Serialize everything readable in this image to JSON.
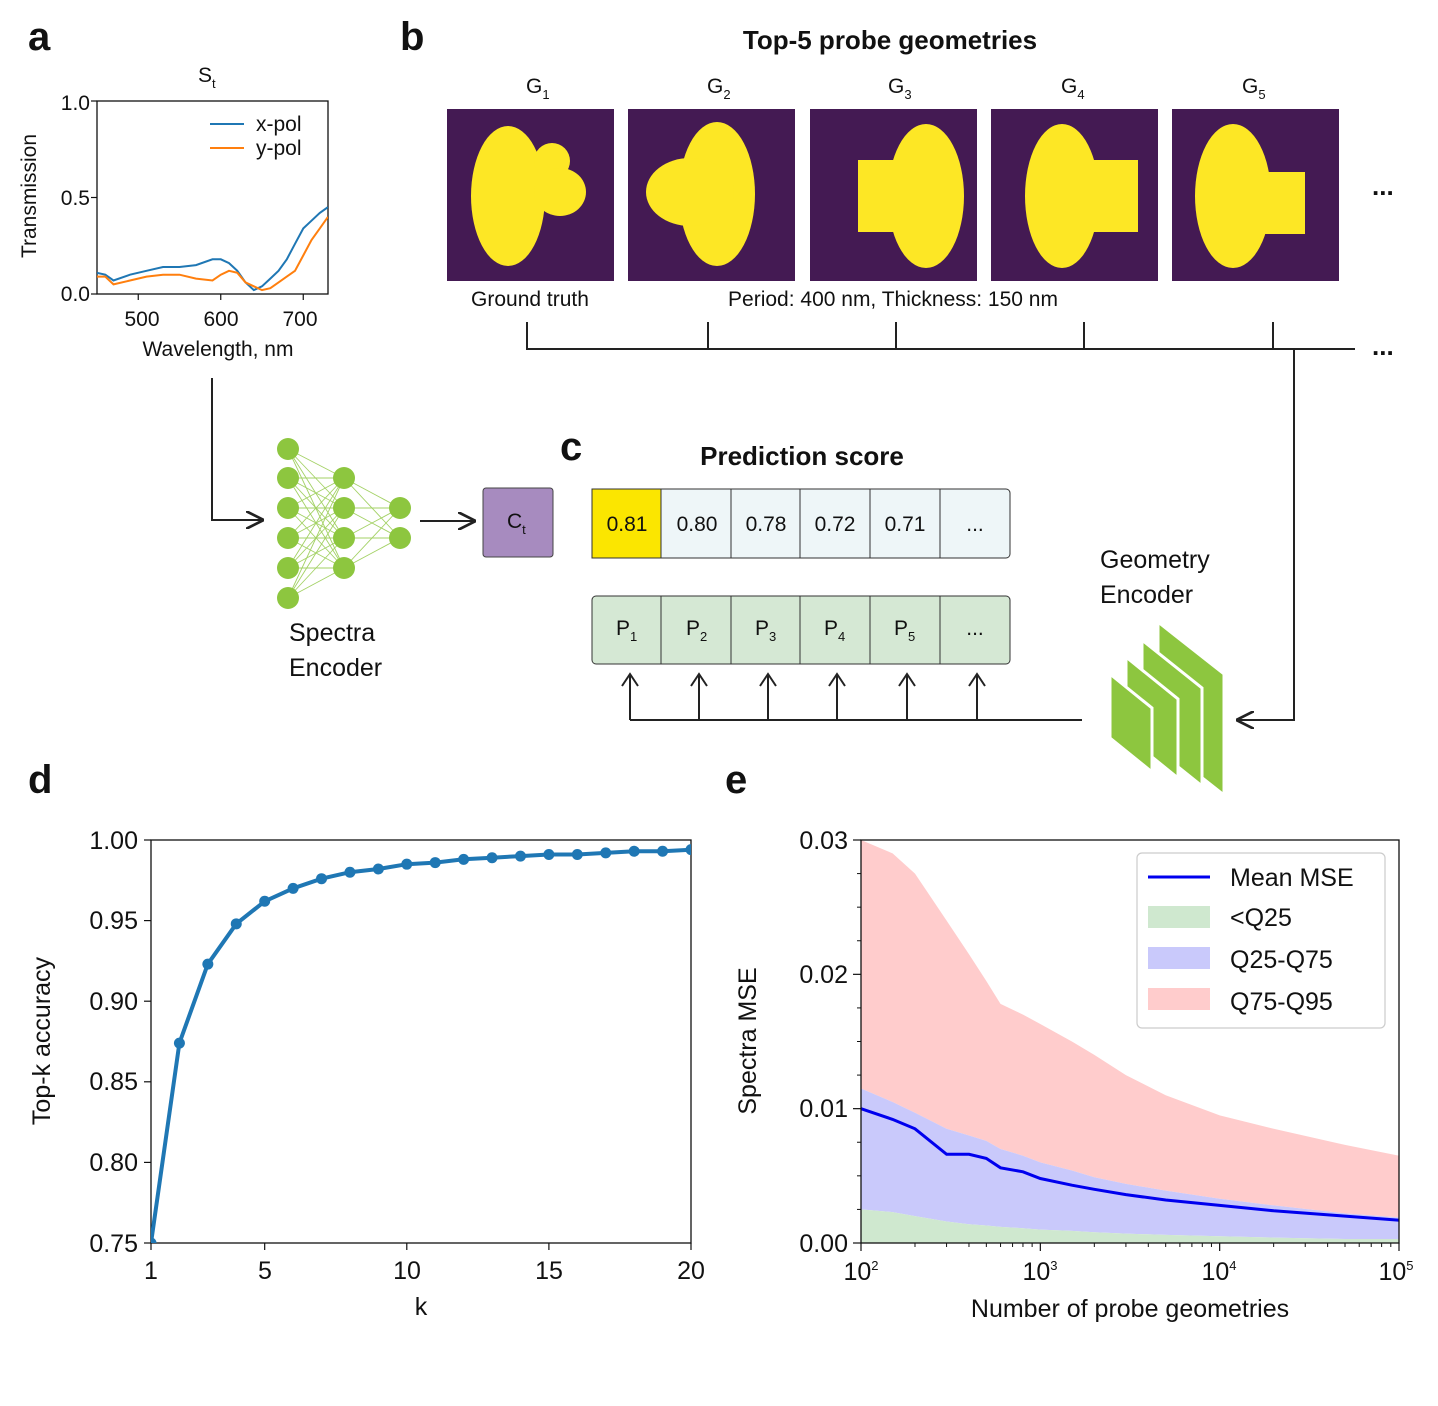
{
  "panel_labels": {
    "a": "a",
    "b": "b",
    "c": "c",
    "d": "d",
    "e": "e"
  },
  "panel_a": {
    "title": "S",
    "title_sub": "t",
    "xlabel": "Wavelength, nm",
    "ylabel": "Transmission",
    "xticks": [
      "500",
      "600",
      "700"
    ],
    "yticks": [
      "0.0",
      "0.5",
      "1.0"
    ],
    "legend": [
      "x-pol",
      "y-pol"
    ],
    "colors": {
      "x": "#1f77b4",
      "y": "#ff7f0e"
    }
  },
  "panel_b": {
    "title": "Top-5 probe geometries",
    "labels": [
      "G",
      "G",
      "G",
      "G",
      "G"
    ],
    "subs": [
      "1",
      "2",
      "3",
      "4",
      "5"
    ],
    "ground_truth": "Ground truth",
    "period_note": "Period: 400 nm, Thickness: 150 nm",
    "ellipsis": "...",
    "colors": {
      "bg": "#441a53",
      "fg": "#fde725"
    }
  },
  "encoders": {
    "spectra_line1": "Spectra",
    "spectra_line2": "Encoder",
    "geometry_line1": "Geometry",
    "geometry_line2": "Encoder",
    "ct_label": "C",
    "ct_sub": "t",
    "colors": {
      "node": "#8dc63f",
      "ct": "#a78bbf",
      "geom": "#8dc63f"
    }
  },
  "panel_c": {
    "title": "Prediction score",
    "scores": [
      "0.81",
      "0.80",
      "0.78",
      "0.72",
      "0.71",
      "..."
    ],
    "probes": [
      "P",
      "P",
      "P",
      "P",
      "P",
      "..."
    ],
    "probe_subs": [
      "1",
      "2",
      "3",
      "4",
      "5",
      ""
    ],
    "colors": {
      "highlight": "#fbe600",
      "score_bg": "#eef6f8",
      "probe_bg": "#d5e8d4"
    }
  },
  "chart_data": [
    {
      "id": "a",
      "type": "line",
      "title": "S_t",
      "xlabel": "Wavelength, nm",
      "ylabel": "Transmission",
      "xlim": [
        450,
        730
      ],
      "ylim": [
        0.0,
        1.0
      ],
      "series": [
        {
          "name": "x-pol",
          "x": [
            450,
            460,
            470,
            490,
            510,
            530,
            550,
            570,
            590,
            600,
            610,
            620,
            630,
            640,
            650,
            660,
            670,
            680,
            690,
            700,
            710,
            720,
            730
          ],
          "values": [
            0.11,
            0.1,
            0.07,
            0.1,
            0.12,
            0.14,
            0.14,
            0.15,
            0.18,
            0.18,
            0.16,
            0.12,
            0.06,
            0.02,
            0.04,
            0.08,
            0.12,
            0.18,
            0.26,
            0.34,
            0.38,
            0.42,
            0.45
          ]
        },
        {
          "name": "y-pol",
          "x": [
            450,
            460,
            470,
            490,
            510,
            530,
            550,
            570,
            590,
            600,
            610,
            620,
            630,
            640,
            650,
            660,
            670,
            680,
            690,
            700,
            710,
            720,
            730
          ],
          "values": [
            0.09,
            0.09,
            0.05,
            0.07,
            0.09,
            0.1,
            0.1,
            0.08,
            0.07,
            0.1,
            0.12,
            0.11,
            0.06,
            0.04,
            0.02,
            0.03,
            0.06,
            0.09,
            0.12,
            0.2,
            0.28,
            0.34,
            0.4
          ]
        }
      ]
    },
    {
      "id": "d",
      "type": "line",
      "xlabel": "k",
      "ylabel": "Top-k accuracy",
      "xlim": [
        1,
        20
      ],
      "ylim": [
        0.75,
        1.0
      ],
      "xticks": [
        "1",
        "5",
        "10",
        "15",
        "20"
      ],
      "yticks": [
        "0.75",
        "0.80",
        "0.85",
        "0.90",
        "0.95",
        "1.00"
      ],
      "color": "#1f77b4",
      "x": [
        1,
        2,
        3,
        4,
        5,
        6,
        7,
        8,
        9,
        10,
        11,
        12,
        13,
        14,
        15,
        16,
        17,
        18,
        19,
        20
      ],
      "values": [
        0.75,
        0.874,
        0.923,
        0.948,
        0.962,
        0.97,
        0.976,
        0.98,
        0.982,
        0.985,
        0.986,
        0.988,
        0.989,
        0.99,
        0.991,
        0.991,
        0.992,
        0.993,
        0.993,
        0.994
      ]
    },
    {
      "id": "e",
      "type": "area",
      "xlabel": "Number of probe geometries",
      "ylabel": "Spectra MSE",
      "xscale": "log",
      "xlim": [
        100,
        100000
      ],
      "ylim": [
        0.0,
        0.03
      ],
      "yticks": [
        "0.00",
        "0.01",
        "0.02",
        "0.03"
      ],
      "xticks": [
        {
          "base": "10",
          "exp": "2"
        },
        {
          "base": "10",
          "exp": "3"
        },
        {
          "base": "10",
          "exp": "4"
        },
        {
          "base": "10",
          "exp": "5"
        }
      ],
      "legend": [
        "Mean MSE",
        "<Q25",
        "Q25-Q75",
        "Q75-Q95"
      ],
      "colors": {
        "mean": "#0000ee",
        "q25": "#cfe8cf",
        "q2575": "#c9c9fb",
        "q7595": "#ffcccc"
      },
      "x": [
        100,
        150,
        200,
        300,
        400,
        500,
        600,
        800,
        1000,
        1500,
        2000,
        3000,
        5000,
        10000,
        20000,
        50000,
        100000
      ],
      "mean": [
        0.01,
        0.0092,
        0.0085,
        0.0066,
        0.0066,
        0.0063,
        0.0056,
        0.0053,
        0.0048,
        0.0043,
        0.004,
        0.0036,
        0.0032,
        0.0028,
        0.0024,
        0.002,
        0.0017
      ],
      "q25": [
        0.0025,
        0.0023,
        0.002,
        0.0016,
        0.0014,
        0.0013,
        0.0012,
        0.0011,
        0.001,
        0.0009,
        0.0008,
        0.0007,
        0.0006,
        0.0005,
        0.0004,
        0.0003,
        0.0003
      ],
      "q75": [
        0.0115,
        0.0105,
        0.0097,
        0.0085,
        0.008,
        0.0076,
        0.007,
        0.0065,
        0.006,
        0.0054,
        0.0049,
        0.0044,
        0.0039,
        0.0033,
        0.0028,
        0.0022,
        0.0019
      ],
      "q95": [
        0.03,
        0.029,
        0.0275,
        0.024,
        0.0215,
        0.0195,
        0.0178,
        0.017,
        0.0163,
        0.015,
        0.014,
        0.0125,
        0.011,
        0.0095,
        0.0085,
        0.0073,
        0.0065
      ]
    }
  ]
}
